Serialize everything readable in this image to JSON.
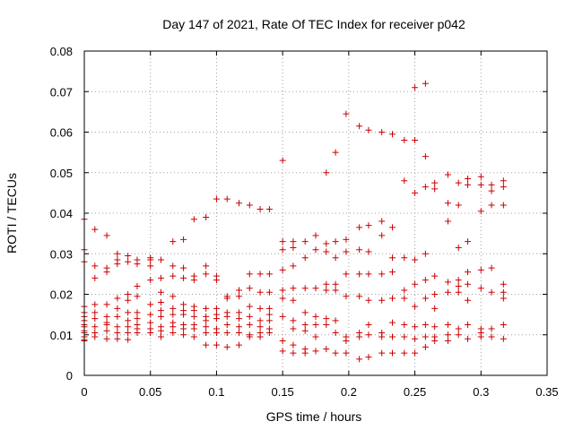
{
  "chart_data": {
    "type": "scatter",
    "title": "Day 147 of 2021, Rate Of TEC Index for receiver p042",
    "xlabel": "GPS time / hours",
    "ylabel": "ROTI / TECUs",
    "xlim": [
      0,
      0.35
    ],
    "ylim": [
      0,
      0.08
    ],
    "xticks": [
      0,
      0.05,
      0.1,
      0.15,
      0.2,
      0.25,
      0.3,
      0.35
    ],
    "xtick_labels": [
      "0",
      "0.05",
      "0.1",
      "0.15",
      "0.2",
      "0.25",
      "0.3",
      "0.35"
    ],
    "yticks": [
      0,
      0.01,
      0.02,
      0.03,
      0.04,
      0.05,
      0.06,
      0.07,
      0.08
    ],
    "ytick_labels": [
      "0",
      "0.01",
      "0.02",
      "0.03",
      "0.04",
      "0.05",
      "0.06",
      "0.07",
      "0.08"
    ],
    "grid": true,
    "marker": "plus",
    "color": "#cc0000",
    "series": [
      {
        "name": "ROTI",
        "x": [
          0.0,
          0.0,
          0.0,
          0.0,
          0.0,
          0.0,
          0.0,
          0.0,
          0.0,
          0.0,
          0.0,
          0.0,
          0.0,
          0.0,
          0.008,
          0.008,
          0.008,
          0.008,
          0.008,
          0.008,
          0.008,
          0.008,
          0.008,
          0.017,
          0.017,
          0.017,
          0.017,
          0.017,
          0.017,
          0.017,
          0.017,
          0.017,
          0.025,
          0.025,
          0.025,
          0.025,
          0.025,
          0.025,
          0.025,
          0.025,
          0.025,
          0.033,
          0.033,
          0.033,
          0.033,
          0.033,
          0.033,
          0.033,
          0.033,
          0.033,
          0.04,
          0.04,
          0.04,
          0.04,
          0.04,
          0.04,
          0.04,
          0.04,
          0.04,
          0.05,
          0.05,
          0.05,
          0.05,
          0.05,
          0.05,
          0.05,
          0.05,
          0.05,
          0.058,
          0.058,
          0.058,
          0.058,
          0.058,
          0.058,
          0.058,
          0.058,
          0.058,
          0.067,
          0.067,
          0.067,
          0.067,
          0.067,
          0.067,
          0.067,
          0.067,
          0.067,
          0.075,
          0.075,
          0.075,
          0.075,
          0.075,
          0.075,
          0.075,
          0.075,
          0.075,
          0.083,
          0.083,
          0.083,
          0.083,
          0.083,
          0.083,
          0.083,
          0.083,
          0.083,
          0.092,
          0.092,
          0.092,
          0.092,
          0.092,
          0.092,
          0.092,
          0.092,
          0.092,
          0.1,
          0.1,
          0.1,
          0.1,
          0.1,
          0.1,
          0.1,
          0.1,
          0.1,
          0.108,
          0.108,
          0.108,
          0.108,
          0.108,
          0.108,
          0.108,
          0.108,
          0.117,
          0.117,
          0.117,
          0.117,
          0.117,
          0.117,
          0.117,
          0.117,
          0.125,
          0.125,
          0.125,
          0.125,
          0.125,
          0.125,
          0.125,
          0.125,
          0.133,
          0.133,
          0.133,
          0.133,
          0.133,
          0.133,
          0.133,
          0.133,
          0.14,
          0.14,
          0.14,
          0.14,
          0.14,
          0.14,
          0.14,
          0.14,
          0.15,
          0.15,
          0.15,
          0.15,
          0.15,
          0.15,
          0.15,
          0.15,
          0.15,
          0.158,
          0.158,
          0.158,
          0.158,
          0.158,
          0.158,
          0.158,
          0.158,
          0.158,
          0.167,
          0.167,
          0.167,
          0.167,
          0.167,
          0.167,
          0.167,
          0.167,
          0.175,
          0.175,
          0.175,
          0.175,
          0.175,
          0.175,
          0.175,
          0.183,
          0.183,
          0.183,
          0.183,
          0.183,
          0.183,
          0.183,
          0.183,
          0.19,
          0.19,
          0.19,
          0.19,
          0.19,
          0.19,
          0.19,
          0.19,
          0.198,
          0.198,
          0.198,
          0.198,
          0.198,
          0.198,
          0.198,
          0.198,
          0.208,
          0.208,
          0.208,
          0.208,
          0.208,
          0.208,
          0.208,
          0.208,
          0.215,
          0.215,
          0.215,
          0.215,
          0.215,
          0.215,
          0.215,
          0.215,
          0.225,
          0.225,
          0.225,
          0.225,
          0.225,
          0.225,
          0.225,
          0.225,
          0.233,
          0.233,
          0.233,
          0.233,
          0.233,
          0.233,
          0.233,
          0.233,
          0.242,
          0.242,
          0.242,
          0.242,
          0.242,
          0.242,
          0.242,
          0.242,
          0.25,
          0.25,
          0.25,
          0.25,
          0.25,
          0.25,
          0.25,
          0.25,
          0.25,
          0.258,
          0.258,
          0.258,
          0.258,
          0.258,
          0.258,
          0.258,
          0.258,
          0.258,
          0.265,
          0.265,
          0.265,
          0.265,
          0.265,
          0.265,
          0.265,
          0.265,
          0.275,
          0.275,
          0.275,
          0.275,
          0.275,
          0.275,
          0.275,
          0.275,
          0.283,
          0.283,
          0.283,
          0.283,
          0.283,
          0.283,
          0.283,
          0.283,
          0.29,
          0.29,
          0.29,
          0.29,
          0.29,
          0.29,
          0.29,
          0.29,
          0.3,
          0.3,
          0.3,
          0.3,
          0.3,
          0.3,
          0.3,
          0.3,
          0.308,
          0.308,
          0.308,
          0.308,
          0.308,
          0.308,
          0.308,
          0.317,
          0.317,
          0.317,
          0.317,
          0.317,
          0.317,
          0.317,
          0.317
        ],
        "y": [
          0.0385,
          0.031,
          0.028,
          0.017,
          0.0155,
          0.0145,
          0.0135,
          0.0125,
          0.012,
          0.011,
          0.0105,
          0.0095,
          0.0088,
          0.0085,
          0.036,
          0.027,
          0.024,
          0.0175,
          0.0155,
          0.014,
          0.012,
          0.0105,
          0.0095,
          0.0345,
          0.0265,
          0.0255,
          0.0175,
          0.0145,
          0.013,
          0.0125,
          0.011,
          0.009,
          0.03,
          0.0285,
          0.0275,
          0.019,
          0.0165,
          0.0145,
          0.012,
          0.0105,
          0.009,
          0.0295,
          0.028,
          0.02,
          0.0185,
          0.0155,
          0.0135,
          0.012,
          0.0105,
          0.0088,
          0.0285,
          0.0275,
          0.022,
          0.0195,
          0.0155,
          0.014,
          0.0125,
          0.0115,
          0.0105,
          0.029,
          0.0285,
          0.027,
          0.0235,
          0.0175,
          0.015,
          0.013,
          0.0115,
          0.0105,
          0.0285,
          0.024,
          0.0205,
          0.018,
          0.016,
          0.0145,
          0.012,
          0.011,
          0.0095,
          0.033,
          0.027,
          0.0245,
          0.0195,
          0.0165,
          0.015,
          0.013,
          0.012,
          0.0105,
          0.0335,
          0.0265,
          0.024,
          0.0175,
          0.016,
          0.015,
          0.0125,
          0.0115,
          0.01,
          0.0385,
          0.0245,
          0.0235,
          0.017,
          0.016,
          0.0145,
          0.0125,
          0.0115,
          0.0095,
          0.039,
          0.027,
          0.025,
          0.0165,
          0.0145,
          0.0135,
          0.012,
          0.0105,
          0.0075,
          0.0435,
          0.0245,
          0.0235,
          0.0165,
          0.015,
          0.014,
          0.0115,
          0.0105,
          0.0075,
          0.0435,
          0.0195,
          0.019,
          0.0155,
          0.0145,
          0.0125,
          0.0105,
          0.007,
          0.0425,
          0.021,
          0.0195,
          0.0155,
          0.014,
          0.012,
          0.0105,
          0.0075,
          0.042,
          0.025,
          0.0215,
          0.017,
          0.0145,
          0.0125,
          0.01,
          0.0095,
          0.041,
          0.025,
          0.0205,
          0.0165,
          0.0135,
          0.012,
          0.0105,
          0.0095,
          0.041,
          0.025,
          0.0205,
          0.0165,
          0.015,
          0.0135,
          0.0115,
          0.0105,
          0.053,
          0.033,
          0.031,
          0.026,
          0.021,
          0.019,
          0.0145,
          0.0085,
          0.006,
          0.033,
          0.0315,
          0.027,
          0.0215,
          0.0185,
          0.0135,
          0.0115,
          0.0075,
          0.0055,
          0.033,
          0.029,
          0.0215,
          0.0155,
          0.0125,
          0.011,
          0.0065,
          0.0055,
          0.0345,
          0.031,
          0.0215,
          0.0145,
          0.0125,
          0.0095,
          0.006,
          0.05,
          0.0325,
          0.0305,
          0.0225,
          0.021,
          0.014,
          0.0125,
          0.0065,
          0.055,
          0.033,
          0.029,
          0.0225,
          0.021,
          0.0135,
          0.0105,
          0.0055,
          0.0645,
          0.0335,
          0.0305,
          0.025,
          0.0195,
          0.0095,
          0.0085,
          0.0055,
          0.0615,
          0.0365,
          0.031,
          0.025,
          0.0195,
          0.0105,
          0.0095,
          0.004,
          0.0605,
          0.037,
          0.0305,
          0.025,
          0.0185,
          0.0125,
          0.01,
          0.0045,
          0.06,
          0.038,
          0.0345,
          0.025,
          0.0185,
          0.0105,
          0.0095,
          0.0055,
          0.0595,
          0.0365,
          0.029,
          0.0255,
          0.019,
          0.013,
          0.0095,
          0.0055,
          0.058,
          0.048,
          0.029,
          0.021,
          0.019,
          0.0125,
          0.0095,
          0.0055,
          0.071,
          0.058,
          0.045,
          0.0285,
          0.0225,
          0.017,
          0.012,
          0.009,
          0.0055,
          0.072,
          0.054,
          0.0465,
          0.03,
          0.0235,
          0.019,
          0.0125,
          0.0095,
          0.007,
          0.0475,
          0.046,
          0.0245,
          0.02,
          0.0165,
          0.012,
          0.0095,
          0.0085,
          0.0495,
          0.0425,
          0.038,
          0.023,
          0.0205,
          0.0125,
          0.01,
          0.0085,
          0.0475,
          0.042,
          0.0315,
          0.0235,
          0.022,
          0.0205,
          0.0115,
          0.01,
          0.0485,
          0.047,
          0.033,
          0.0255,
          0.0225,
          0.0185,
          0.0125,
          0.009,
          0.049,
          0.047,
          0.0405,
          0.026,
          0.0215,
          0.0115,
          0.0105,
          0.0095,
          0.047,
          0.0455,
          0.042,
          0.0265,
          0.0205,
          0.0115,
          0.0095,
          0.048,
          0.0465,
          0.042,
          0.0225,
          0.0205,
          0.019,
          0.0125,
          0.009
        ]
      }
    ]
  }
}
